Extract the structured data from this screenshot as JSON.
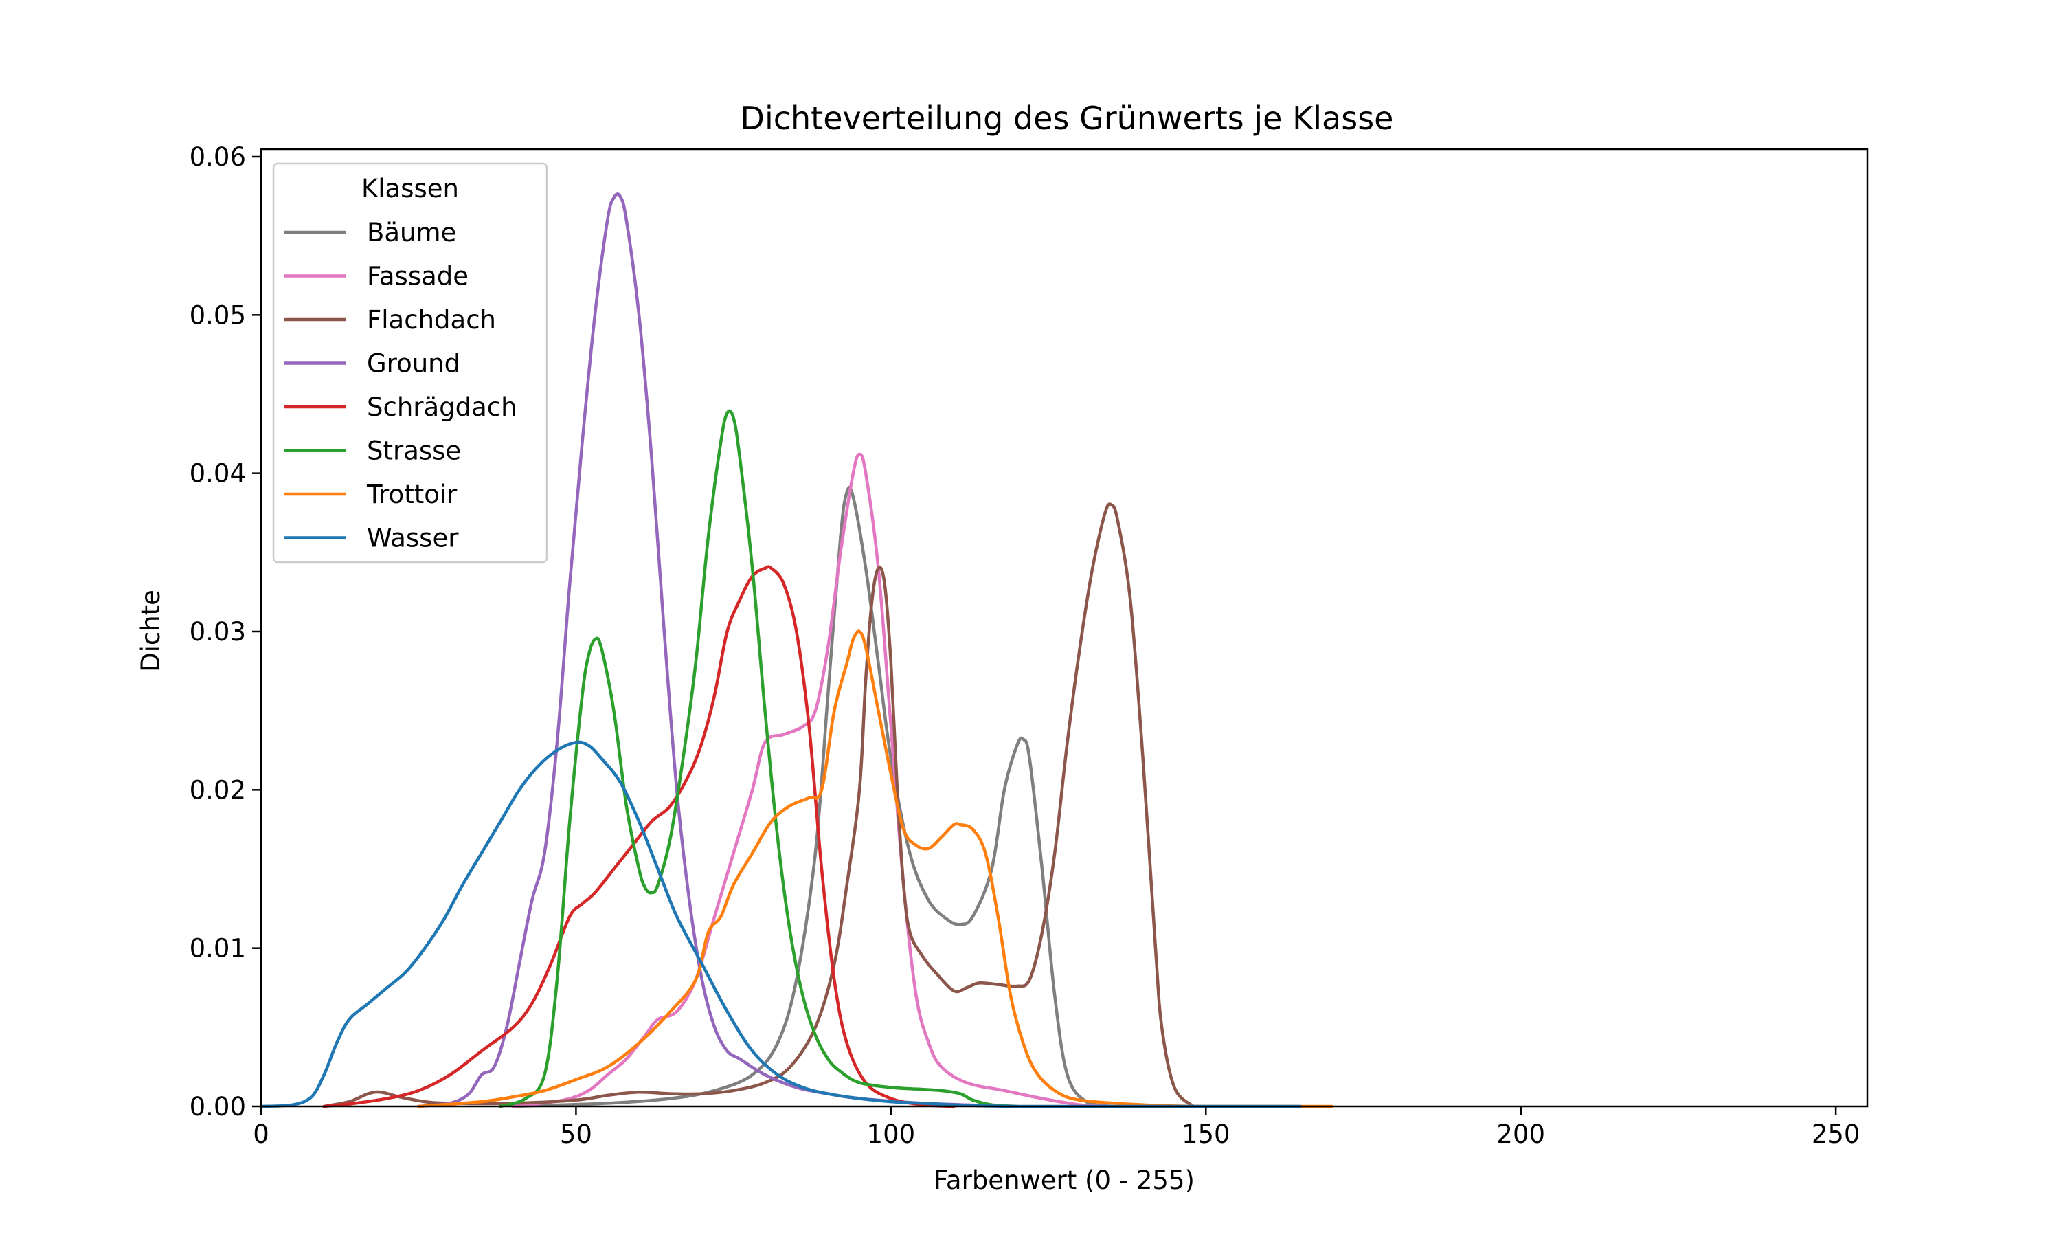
{
  "chart_data": {
    "type": "line",
    "title": "Dichteverteilung des Grünwerts je Klasse",
    "xlabel": "Farbenwert (0 - 255)",
    "ylabel": "Dichte",
    "xlim": [
      0,
      255
    ],
    "ylim": [
      0,
      0.06
    ],
    "x_ticks": [
      0,
      50,
      100,
      150,
      200,
      250
    ],
    "y_ticks": [
      0.0,
      0.01,
      0.02,
      0.03,
      0.04,
      0.05,
      0.06
    ],
    "x_tick_labels": [
      "0",
      "50",
      "100",
      "150",
      "200",
      "250"
    ],
    "y_tick_labels": [
      "0.00",
      "0.01",
      "0.02",
      "0.03",
      "0.04",
      "0.05",
      "0.06"
    ],
    "grid": false,
    "legend": {
      "title": "Klassen",
      "position": "top-left"
    },
    "series": [
      {
        "name": "Bäume",
        "color": "#7f7f7f",
        "points": [
          [
            40,
            0
          ],
          [
            55,
            0.0002
          ],
          [
            65,
            0.0005
          ],
          [
            72,
            0.001
          ],
          [
            78,
            0.002
          ],
          [
            82,
            0.004
          ],
          [
            85,
            0.008
          ],
          [
            88,
            0.016
          ],
          [
            90,
            0.026
          ],
          [
            92,
            0.036
          ],
          [
            93,
            0.0388
          ],
          [
            94,
            0.0385
          ],
          [
            96,
            0.034
          ],
          [
            98,
            0.028
          ],
          [
            100,
            0.022
          ],
          [
            103,
            0.016
          ],
          [
            106,
            0.013
          ],
          [
            109,
            0.0118
          ],
          [
            111,
            0.0115
          ],
          [
            113,
            0.012
          ],
          [
            116,
            0.015
          ],
          [
            118,
            0.02
          ],
          [
            120,
            0.0228
          ],
          [
            121,
            0.0232
          ],
          [
            122,
            0.022
          ],
          [
            124,
            0.015
          ],
          [
            126,
            0.007
          ],
          [
            128,
            0.002
          ],
          [
            131,
            0.0003
          ],
          [
            135,
            0
          ]
        ]
      },
      {
        "name": "Fassade",
        "color": "#e377c2",
        "points": [
          [
            40,
            0
          ],
          [
            48,
            0.0004
          ],
          [
            52,
            0.001
          ],
          [
            55,
            0.002
          ],
          [
            58,
            0.003
          ],
          [
            61,
            0.0045
          ],
          [
            63,
            0.0055
          ],
          [
            66,
            0.006
          ],
          [
            69,
            0.008
          ],
          [
            72,
            0.012
          ],
          [
            75,
            0.016
          ],
          [
            78,
            0.02
          ],
          [
            80,
            0.023
          ],
          [
            83,
            0.0235
          ],
          [
            86,
            0.024
          ],
          [
            88,
            0.025
          ],
          [
            90,
            0.029
          ],
          [
            92,
            0.035
          ],
          [
            94,
            0.04
          ],
          [
            95,
            0.0412
          ],
          [
            96,
            0.04
          ],
          [
            98,
            0.034
          ],
          [
            100,
            0.024
          ],
          [
            102,
            0.014
          ],
          [
            104,
            0.007
          ],
          [
            106,
            0.004
          ],
          [
            108,
            0.0025
          ],
          [
            112,
            0.0015
          ],
          [
            118,
            0.001
          ],
          [
            124,
            0.0005
          ],
          [
            130,
            0.0001
          ],
          [
            135,
            0
          ]
        ]
      },
      {
        "name": "Flachdach",
        "color": "#8c564b",
        "points": [
          [
            10,
            0
          ],
          [
            14,
            0.0003
          ],
          [
            17,
            0.0008
          ],
          [
            19,
            0.0009
          ],
          [
            22,
            0.0006
          ],
          [
            26,
            0.0003
          ],
          [
            30,
            0.0002
          ],
          [
            40,
            0.0002
          ],
          [
            50,
            0.0004
          ],
          [
            55,
            0.0007
          ],
          [
            60,
            0.0009
          ],
          [
            65,
            0.0008
          ],
          [
            70,
            0.0008
          ],
          [
            75,
            0.001
          ],
          [
            80,
            0.0015
          ],
          [
            84,
            0.0025
          ],
          [
            88,
            0.005
          ],
          [
            91,
            0.009
          ],
          [
            93,
            0.014
          ],
          [
            95,
            0.02
          ],
          [
            96,
            0.027
          ],
          [
            97,
            0.032
          ],
          [
            98,
            0.034
          ],
          [
            99,
            0.033
          ],
          [
            100,
            0.028
          ],
          [
            101,
            0.02
          ],
          [
            102,
            0.014
          ],
          [
            103,
            0.011
          ],
          [
            105,
            0.0095
          ],
          [
            107,
            0.0085
          ],
          [
            110,
            0.0073
          ],
          [
            112,
            0.0075
          ],
          [
            114,
            0.0078
          ],
          [
            117,
            0.0077
          ],
          [
            120,
            0.0076
          ],
          [
            122,
            0.008
          ],
          [
            124,
            0.011
          ],
          [
            126,
            0.016
          ],
          [
            128,
            0.023
          ],
          [
            130,
            0.029
          ],
          [
            132,
            0.034
          ],
          [
            134,
            0.0375
          ],
          [
            135,
            0.038
          ],
          [
            136,
            0.037
          ],
          [
            138,
            0.032
          ],
          [
            140,
            0.022
          ],
          [
            142,
            0.01
          ],
          [
            143,
            0.005
          ],
          [
            145,
            0.0012
          ],
          [
            148,
            0
          ]
        ]
      },
      {
        "name": "Ground",
        "color": "#9467bd",
        "points": [
          [
            25,
            0
          ],
          [
            30,
            0.0002
          ],
          [
            33,
            0.0008
          ],
          [
            35,
            0.002
          ],
          [
            37,
            0.0025
          ],
          [
            39,
            0.005
          ],
          [
            41,
            0.009
          ],
          [
            43,
            0.013
          ],
          [
            45,
            0.016
          ],
          [
            47,
            0.023
          ],
          [
            49,
            0.033
          ],
          [
            51,
            0.042
          ],
          [
            53,
            0.05
          ],
          [
            55,
            0.056
          ],
          [
            56,
            0.0574
          ],
          [
            57,
            0.0575
          ],
          [
            58,
            0.056
          ],
          [
            60,
            0.05
          ],
          [
            62,
            0.041
          ],
          [
            64,
            0.03
          ],
          [
            66,
            0.02
          ],
          [
            68,
            0.013
          ],
          [
            70,
            0.008
          ],
          [
            72,
            0.005
          ],
          [
            74,
            0.0035
          ],
          [
            76,
            0.003
          ],
          [
            80,
            0.002
          ],
          [
            85,
            0.0012
          ],
          [
            90,
            0.0008
          ],
          [
            95,
            0.0005
          ],
          [
            105,
            0.0002
          ],
          [
            120,
            0
          ]
        ]
      },
      {
        "name": "Schrägdach",
        "color": "#d62728",
        "points": [
          [
            10,
            0
          ],
          [
            15,
            0.0002
          ],
          [
            20,
            0.0005
          ],
          [
            25,
            0.001
          ],
          [
            30,
            0.002
          ],
          [
            35,
            0.0035
          ],
          [
            40,
            0.005
          ],
          [
            43,
            0.0065
          ],
          [
            46,
            0.009
          ],
          [
            49,
            0.012
          ],
          [
            51,
            0.0128
          ],
          [
            53,
            0.0135
          ],
          [
            56,
            0.015
          ],
          [
            59,
            0.0165
          ],
          [
            62,
            0.018
          ],
          [
            65,
            0.019
          ],
          [
            68,
            0.021
          ],
          [
            70,
            0.023
          ],
          [
            72,
            0.026
          ],
          [
            74,
            0.03
          ],
          [
            76,
            0.032
          ],
          [
            78,
            0.0335
          ],
          [
            80,
            0.034
          ],
          [
            81,
            0.034
          ],
          [
            83,
            0.033
          ],
          [
            85,
            0.03
          ],
          [
            87,
            0.024
          ],
          [
            89,
            0.015
          ],
          [
            91,
            0.008
          ],
          [
            93,
            0.004
          ],
          [
            96,
            0.0015
          ],
          [
            100,
            0.0005
          ],
          [
            105,
            0.0001
          ],
          [
            110,
            0
          ]
        ]
      },
      {
        "name": "Strasse",
        "color": "#2ca02c",
        "points": [
          [
            38,
            0
          ],
          [
            42,
            0.0005
          ],
          [
            45,
            0.002
          ],
          [
            47,
            0.008
          ],
          [
            49,
            0.018
          ],
          [
            51,
            0.026
          ],
          [
            52,
            0.0285
          ],
          [
            53,
            0.0295
          ],
          [
            54,
            0.029
          ],
          [
            56,
            0.025
          ],
          [
            58,
            0.019
          ],
          [
            60,
            0.015
          ],
          [
            61,
            0.0138
          ],
          [
            62,
            0.0135
          ],
          [
            63,
            0.014
          ],
          [
            65,
            0.017
          ],
          [
            67,
            0.022
          ],
          [
            69,
            0.028
          ],
          [
            71,
            0.036
          ],
          [
            73,
            0.042
          ],
          [
            74,
            0.0438
          ],
          [
            75,
            0.0435
          ],
          [
            76,
            0.041
          ],
          [
            78,
            0.034
          ],
          [
            80,
            0.025
          ],
          [
            82,
            0.017
          ],
          [
            84,
            0.011
          ],
          [
            86,
            0.007
          ],
          [
            88,
            0.0045
          ],
          [
            90,
            0.003
          ],
          [
            92,
            0.0022
          ],
          [
            95,
            0.0015
          ],
          [
            100,
            0.0012
          ],
          [
            104,
            0.0011
          ],
          [
            108,
            0.001
          ],
          [
            111,
            0.0008
          ],
          [
            113,
            0.0004
          ],
          [
            116,
            0.0001
          ],
          [
            120,
            0
          ]
        ]
      },
      {
        "name": "Trottoir",
        "color": "#ff7f0e",
        "points": [
          [
            25,
            0
          ],
          [
            35,
            0.0003
          ],
          [
            40,
            0.0006
          ],
          [
            45,
            0.001
          ],
          [
            50,
            0.0017
          ],
          [
            55,
            0.0025
          ],
          [
            60,
            0.004
          ],
          [
            65,
            0.006
          ],
          [
            69,
            0.008
          ],
          [
            71,
            0.011
          ],
          [
            73,
            0.012
          ],
          [
            75,
            0.014
          ],
          [
            78,
            0.016
          ],
          [
            81,
            0.018
          ],
          [
            84,
            0.019
          ],
          [
            87,
            0.0195
          ],
          [
            89,
            0.02
          ],
          [
            91,
            0.025
          ],
          [
            93,
            0.028
          ],
          [
            94,
            0.0295
          ],
          [
            95,
            0.03
          ],
          [
            96,
            0.029
          ],
          [
            98,
            0.025
          ],
          [
            100,
            0.021
          ],
          [
            102,
            0.0175
          ],
          [
            104,
            0.0165
          ],
          [
            106,
            0.0163
          ],
          [
            108,
            0.017
          ],
          [
            110,
            0.0178
          ],
          [
            111,
            0.0178
          ],
          [
            113,
            0.0175
          ],
          [
            115,
            0.016
          ],
          [
            117,
            0.012
          ],
          [
            119,
            0.007
          ],
          [
            121,
            0.004
          ],
          [
            123,
            0.0022
          ],
          [
            126,
            0.001
          ],
          [
            130,
            0.0004
          ],
          [
            140,
            0.0001
          ],
          [
            150,
            0
          ],
          [
            170,
            0
          ]
        ]
      },
      {
        "name": "Wasser",
        "color": "#1f77b4",
        "points": [
          [
            0,
            0
          ],
          [
            5,
            0.0001
          ],
          [
            8,
            0.0006
          ],
          [
            10,
            0.002
          ],
          [
            12,
            0.004
          ],
          [
            14,
            0.0055
          ],
          [
            17,
            0.0065
          ],
          [
            20,
            0.0075
          ],
          [
            23,
            0.0085
          ],
          [
            26,
            0.01
          ],
          [
            29,
            0.0118
          ],
          [
            32,
            0.014
          ],
          [
            35,
            0.016
          ],
          [
            38,
            0.018
          ],
          [
            41,
            0.02
          ],
          [
            44,
            0.0215
          ],
          [
            47,
            0.0225
          ],
          [
            50,
            0.023
          ],
          [
            52,
            0.0228
          ],
          [
            54,
            0.022
          ],
          [
            57,
            0.0205
          ],
          [
            60,
            0.018
          ],
          [
            63,
            0.015
          ],
          [
            66,
            0.012
          ],
          [
            70,
            0.009
          ],
          [
            74,
            0.006
          ],
          [
            78,
            0.0035
          ],
          [
            82,
            0.002
          ],
          [
            86,
            0.0012
          ],
          [
            90,
            0.0008
          ],
          [
            95,
            0.0005
          ],
          [
            100,
            0.0003
          ],
          [
            105,
            0.0002
          ],
          [
            120,
            0
          ],
          [
            165,
            0
          ]
        ]
      }
    ]
  }
}
